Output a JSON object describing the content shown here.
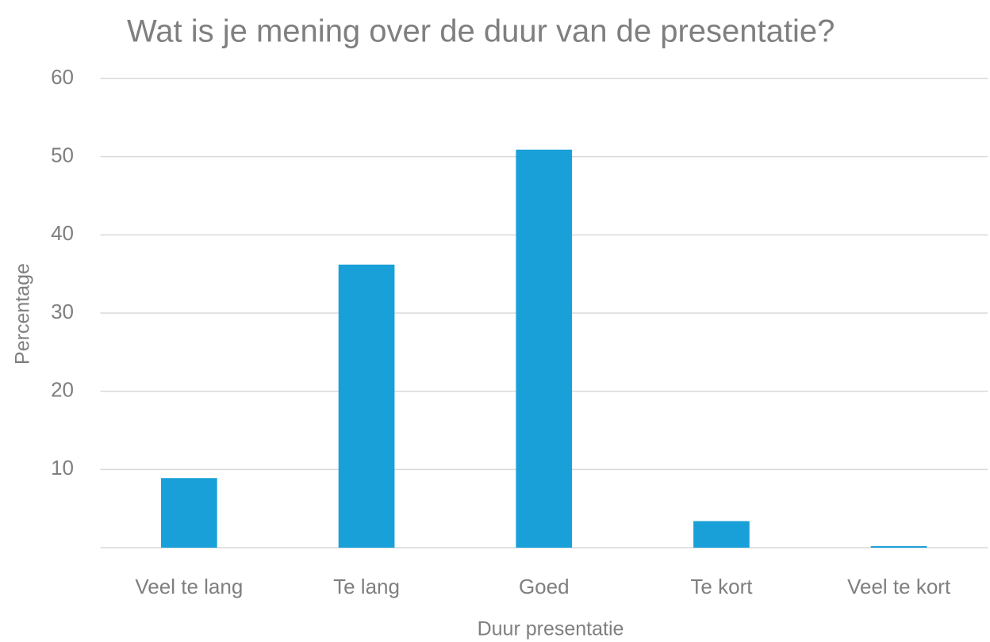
{
  "chart_data": {
    "type": "bar",
    "title": "Wat is je mening over de duur van de presentatie?",
    "x_label": "Duur presentatie",
    "y_label": "Percentage",
    "categories": [
      "Veel te lang",
      "Te lang",
      "Goed",
      "Te kort",
      "Veel te kort"
    ],
    "values": [
      8.9,
      36.2,
      50.9,
      3.4,
      0.2
    ],
    "color": "#1aa0d8",
    "ylim": [
      0,
      60
    ],
    "yticks": [
      10,
      20,
      30,
      40,
      50,
      60
    ],
    "grid": true
  }
}
